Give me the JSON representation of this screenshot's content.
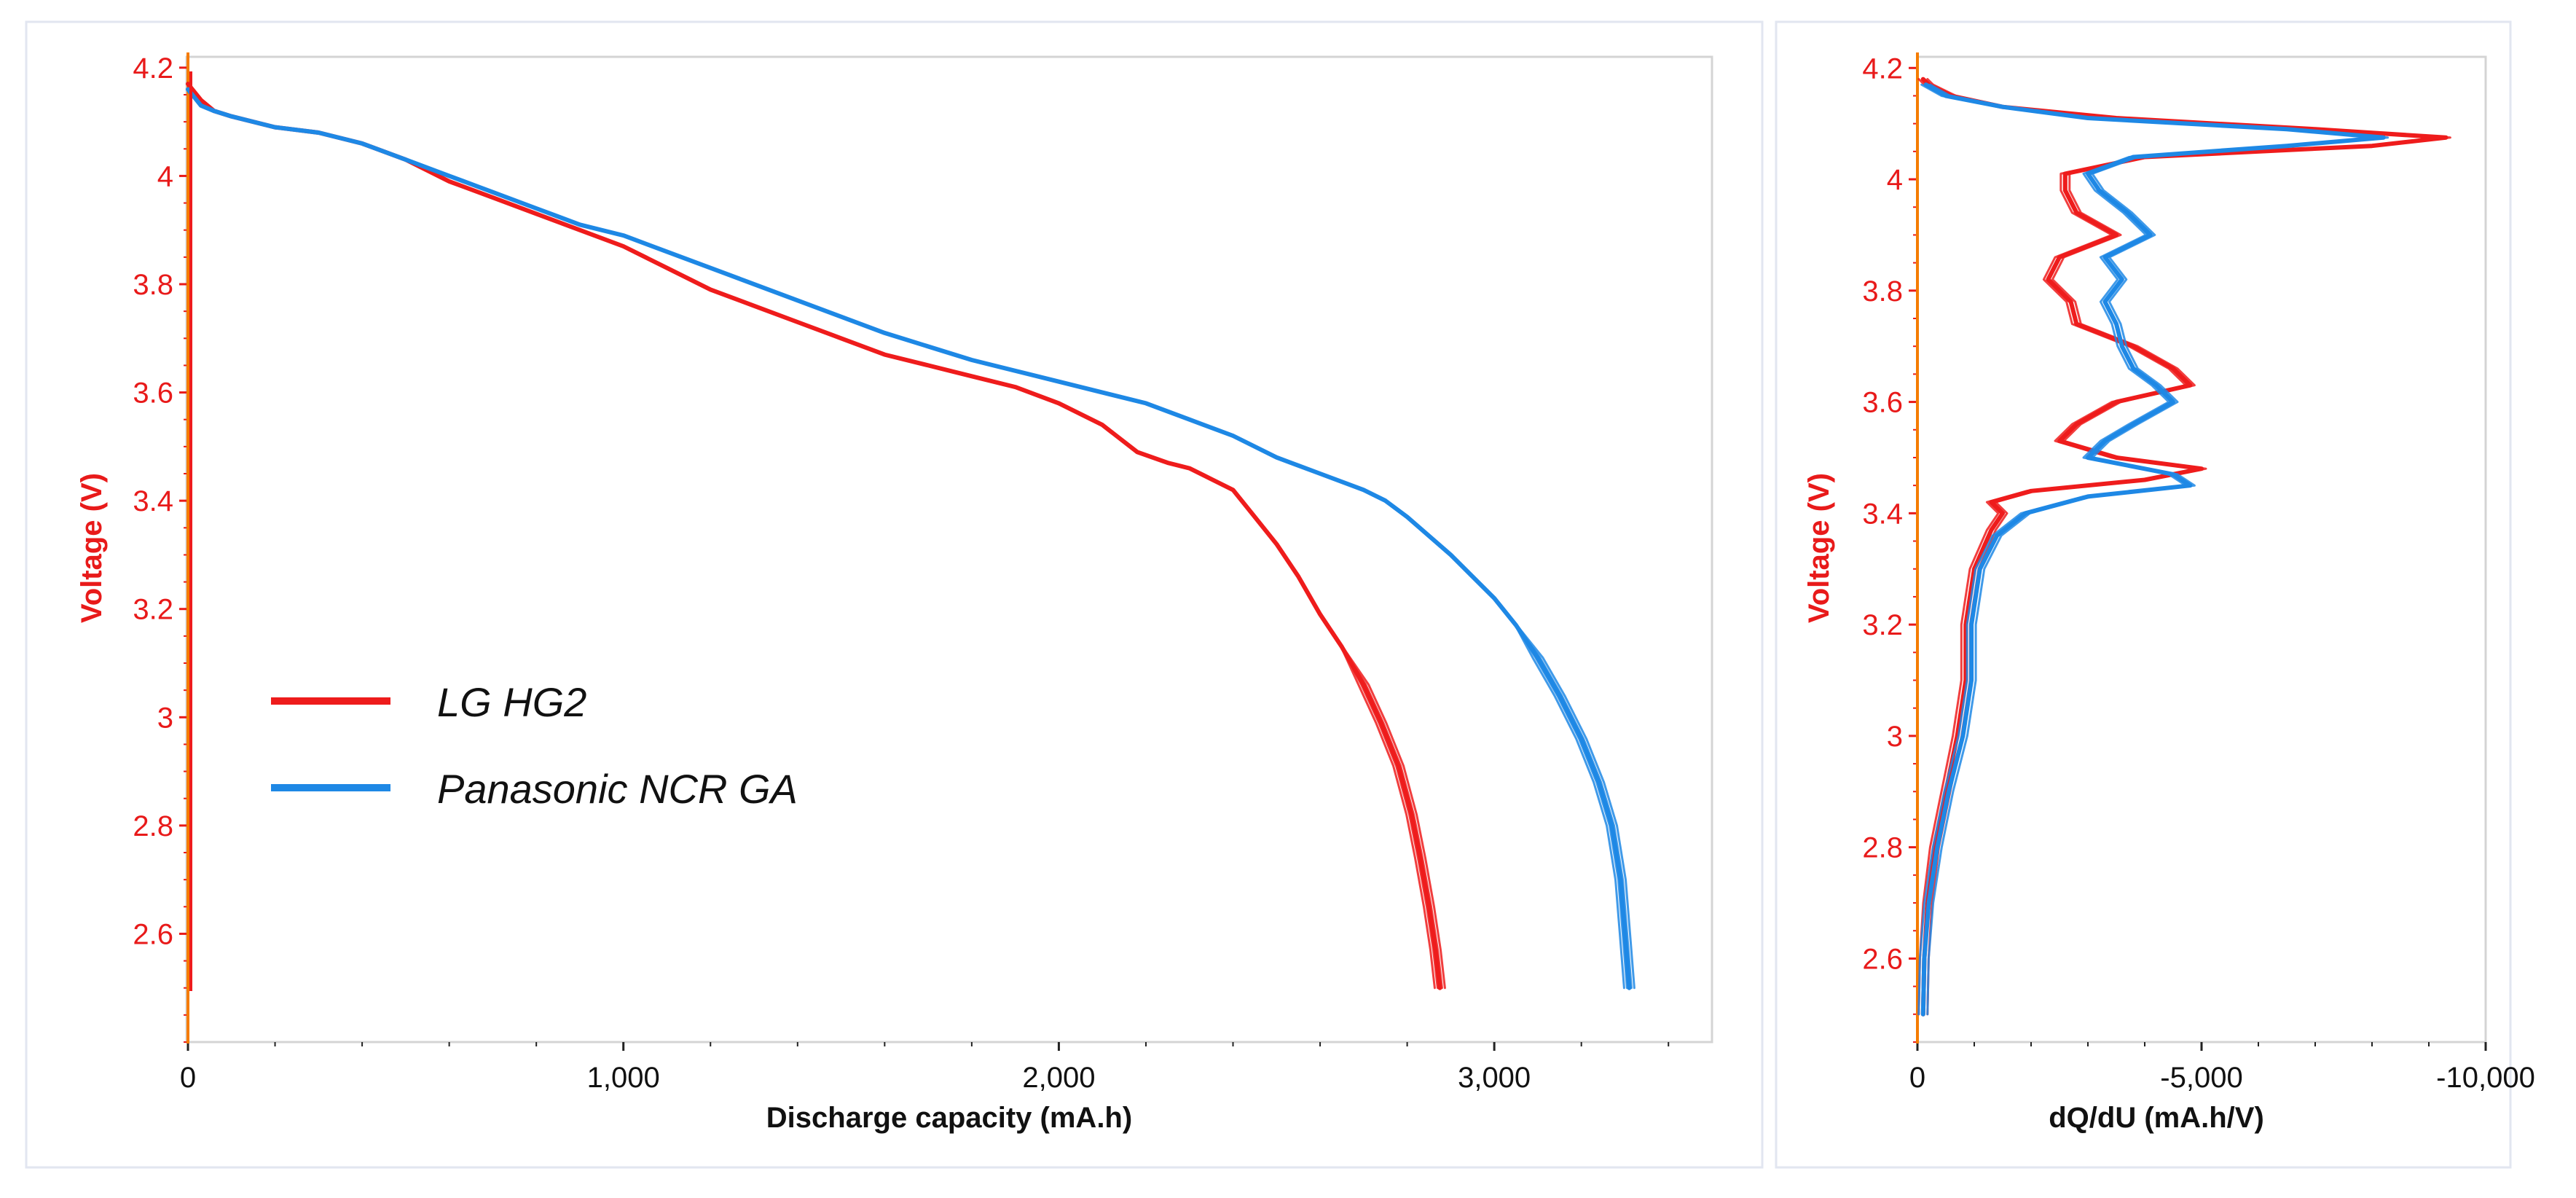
{
  "chart_data": [
    {
      "type": "line",
      "title": "",
      "xlabel": "Discharge capacity (mA.h)",
      "ylabel": "Voltage (V)",
      "xlim": [
        0,
        3500
      ],
      "ylim": [
        2.4,
        4.22
      ],
      "xticks": [
        0,
        1000,
        2000,
        3000
      ],
      "xtick_labels": [
        "0",
        "1,000",
        "2,000",
        "3,000"
      ],
      "yticks": [
        2.6,
        2.8,
        3,
        3.2,
        3.4,
        3.6,
        3.8,
        4,
        4.2
      ],
      "ytick_labels": [
        "2.6",
        "2.8",
        "3",
        "3.2",
        "3.4",
        "3.6",
        "3.8",
        "4",
        "4.2"
      ],
      "legend_position": "left-middle",
      "series": [
        {
          "name": "LG HG2",
          "color": "#ee1c1c",
          "x": [
            0,
            10,
            30,
            60,
            100,
            200,
            300,
            400,
            500,
            600,
            700,
            800,
            900,
            1000,
            1100,
            1200,
            1300,
            1400,
            1500,
            1600,
            1700,
            1800,
            1900,
            2000,
            2100,
            2180,
            2250,
            2300,
            2350,
            2400,
            2450,
            2500,
            2550,
            2600,
            2650,
            2700,
            2740,
            2780,
            2810,
            2830,
            2850,
            2865,
            2875
          ],
          "y": [
            4.17,
            4.16,
            4.14,
            4.12,
            4.11,
            4.09,
            4.08,
            4.06,
            4.03,
            3.99,
            3.96,
            3.93,
            3.9,
            3.87,
            3.83,
            3.79,
            3.76,
            3.73,
            3.7,
            3.67,
            3.65,
            3.63,
            3.61,
            3.58,
            3.54,
            3.49,
            3.47,
            3.46,
            3.44,
            3.42,
            3.37,
            3.32,
            3.26,
            3.19,
            3.13,
            3.06,
            2.99,
            2.91,
            2.82,
            2.74,
            2.65,
            2.57,
            2.5
          ]
        },
        {
          "name": "Panasonic NCR GA",
          "color": "#1e88e5",
          "x": [
            0,
            10,
            30,
            60,
            100,
            200,
            300,
            400,
            500,
            600,
            700,
            800,
            900,
            1000,
            1100,
            1200,
            1400,
            1600,
            1800,
            2000,
            2200,
            2300,
            2400,
            2500,
            2600,
            2700,
            2750,
            2800,
            2900,
            3000,
            3050,
            3100,
            3150,
            3200,
            3240,
            3270,
            3290,
            3300,
            3310
          ],
          "y": [
            4.16,
            4.15,
            4.13,
            4.12,
            4.11,
            4.09,
            4.08,
            4.06,
            4.03,
            4.0,
            3.97,
            3.94,
            3.91,
            3.89,
            3.86,
            3.83,
            3.77,
            3.71,
            3.66,
            3.62,
            3.58,
            3.55,
            3.52,
            3.48,
            3.45,
            3.42,
            3.4,
            3.37,
            3.3,
            3.22,
            3.17,
            3.11,
            3.04,
            2.96,
            2.88,
            2.8,
            2.7,
            2.6,
            2.5
          ]
        }
      ]
    },
    {
      "type": "line",
      "title": "",
      "xlabel": "dQ/dU (mA.h/V)",
      "ylabel": "Voltage (V)",
      "xlim": [
        0,
        -10000
      ],
      "ylim": [
        2.45,
        4.22
      ],
      "xticks": [
        0,
        -5000,
        -10000
      ],
      "xtick_labels": [
        "0",
        "-5,000",
        "-10,000"
      ],
      "yticks": [
        2.6,
        2.8,
        3,
        3.2,
        3.4,
        3.6,
        3.8,
        4,
        4.2
      ],
      "ytick_labels": [
        "2.6",
        "2.8",
        "3",
        "3.2",
        "3.4",
        "3.6",
        "3.8",
        "4",
        "4.2"
      ],
      "series": [
        {
          "name": "LG HG2",
          "color": "#ee1c1c",
          "y": [
            2.5,
            2.6,
            2.7,
            2.8,
            2.9,
            3.0,
            3.1,
            3.2,
            3.3,
            3.37,
            3.4,
            3.42,
            3.44,
            3.46,
            3.48,
            3.5,
            3.53,
            3.56,
            3.6,
            3.63,
            3.66,
            3.7,
            3.74,
            3.78,
            3.82,
            3.86,
            3.9,
            3.94,
            3.98,
            4.01,
            4.04,
            4.06,
            4.075,
            4.09,
            4.11,
            4.13,
            4.15,
            4.17,
            4.18
          ],
          "x": [
            -100,
            -120,
            -180,
            -300,
            -500,
            -700,
            -850,
            -850,
            -1000,
            -1300,
            -1500,
            -1300,
            -2000,
            -4000,
            -5000,
            -3500,
            -2500,
            -2800,
            -3500,
            -4800,
            -4500,
            -3800,
            -2800,
            -2700,
            -2300,
            -2500,
            -3500,
            -2800,
            -2600,
            -2600,
            -4000,
            -8000,
            -9300,
            -7000,
            -3500,
            -1500,
            -600,
            -200,
            -100
          ]
        },
        {
          "name": "Panasonic NCR GA",
          "color": "#1e88e5",
          "y": [
            2.5,
            2.6,
            2.7,
            2.8,
            2.9,
            3.0,
            3.1,
            3.2,
            3.3,
            3.36,
            3.4,
            3.43,
            3.45,
            3.47,
            3.5,
            3.53,
            3.56,
            3.6,
            3.63,
            3.66,
            3.7,
            3.74,
            3.78,
            3.82,
            3.86,
            3.9,
            3.94,
            3.98,
            4.01,
            4.04,
            4.06,
            4.075,
            4.09,
            4.11,
            4.13,
            4.15,
            4.17
          ],
          "x": [
            -100,
            -120,
            -200,
            -350,
            -550,
            -800,
            -950,
            -950,
            -1100,
            -1400,
            -1900,
            -3000,
            -4800,
            -4500,
            -3000,
            -3300,
            -3800,
            -4500,
            -4200,
            -3800,
            -3600,
            -3500,
            -3300,
            -3600,
            -3300,
            -4100,
            -3700,
            -3200,
            -3000,
            -3800,
            -6500,
            -8200,
            -6500,
            -3000,
            -1500,
            -500,
            -150
          ]
        }
      ]
    }
  ]
}
